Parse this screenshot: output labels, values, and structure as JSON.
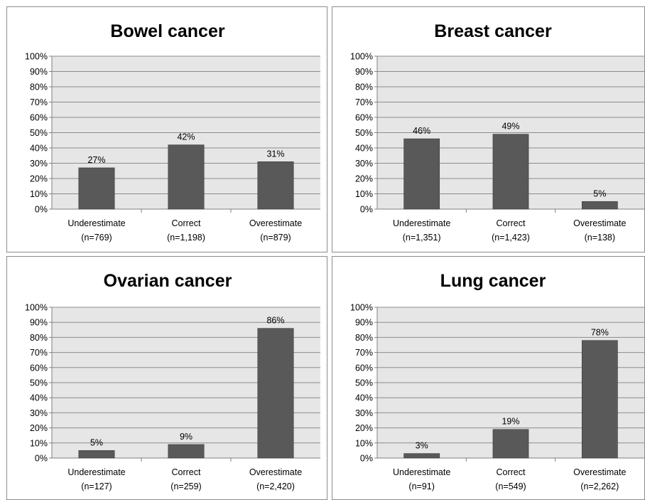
{
  "chart_data": [
    {
      "type": "bar",
      "title": "Bowel cancer",
      "categories": [
        "Underestimate",
        "Correct",
        "Overestimate"
      ],
      "counts": [
        "(n=769)",
        "(n=1,198)",
        "(n=879)"
      ],
      "values": [
        27,
        42,
        31
      ],
      "value_labels": [
        "27%",
        "42%",
        "31%"
      ],
      "ylim": [
        0,
        100
      ],
      "yticks": [
        "0%",
        "10%",
        "20%",
        "30%",
        "40%",
        "50%",
        "60%",
        "70%",
        "80%",
        "90%",
        "100%"
      ],
      "grid": true,
      "xlabel": "",
      "ylabel": ""
    },
    {
      "type": "bar",
      "title": "Breast cancer",
      "categories": [
        "Underestimate",
        "Correct",
        "Overestimate"
      ],
      "counts": [
        "(n=1,351)",
        "(n=1,423)",
        "(n=138)"
      ],
      "values": [
        46,
        49,
        5
      ],
      "value_labels": [
        "46%",
        "49%",
        "5%"
      ],
      "ylim": [
        0,
        100
      ],
      "yticks": [
        "0%",
        "10%",
        "20%",
        "30%",
        "40%",
        "50%",
        "60%",
        "70%",
        "80%",
        "90%",
        "100%"
      ],
      "grid": true,
      "xlabel": "",
      "ylabel": ""
    },
    {
      "type": "bar",
      "title": "Ovarian cancer",
      "categories": [
        "Underestimate",
        "Correct",
        "Overestimate"
      ],
      "counts": [
        "(n=127)",
        "(n=259)",
        "(n=2,420)"
      ],
      "values": [
        5,
        9,
        86
      ],
      "value_labels": [
        "5%",
        "9%",
        "86%"
      ],
      "ylim": [
        0,
        100
      ],
      "yticks": [
        "0%",
        "10%",
        "20%",
        "30%",
        "40%",
        "50%",
        "60%",
        "70%",
        "80%",
        "90%",
        "100%"
      ],
      "grid": true,
      "xlabel": "",
      "ylabel": ""
    },
    {
      "type": "bar",
      "title": "Lung cancer",
      "categories": [
        "Underestimate",
        "Correct",
        "Overestimate"
      ],
      "counts": [
        "(n=91)",
        "(n=549)",
        "(n=2,262)"
      ],
      "values": [
        3,
        19,
        78
      ],
      "value_labels": [
        "3%",
        "19%",
        "78%"
      ],
      "ylim": [
        0,
        100
      ],
      "yticks": [
        "0%",
        "10%",
        "20%",
        "30%",
        "40%",
        "50%",
        "60%",
        "70%",
        "80%",
        "90%",
        "100%"
      ],
      "grid": true,
      "xlabel": "",
      "ylabel": ""
    }
  ],
  "colors": {
    "bar": "#595959",
    "plot_area": "#e6e6e6",
    "gridline": "#8c8c8c",
    "axis": "#808080"
  }
}
